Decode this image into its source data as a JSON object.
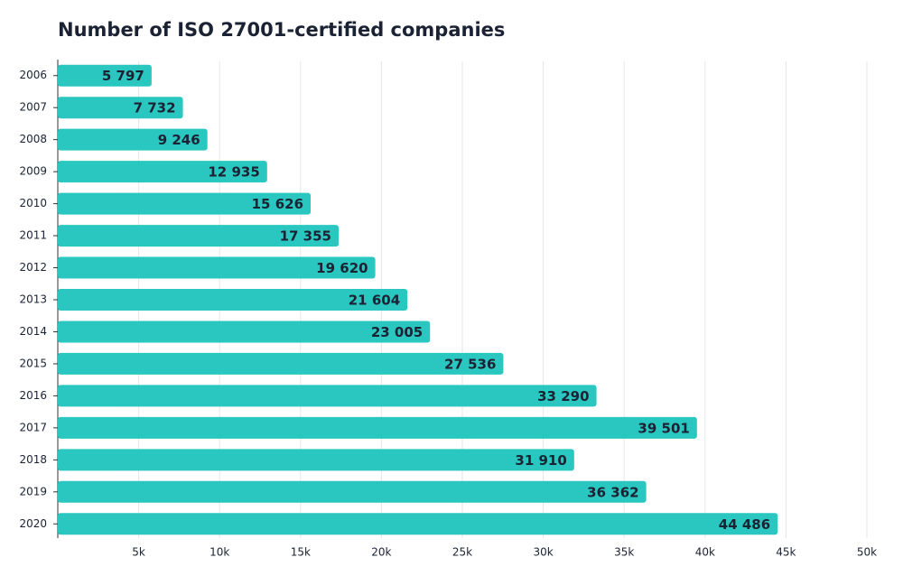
{
  "chart_data": {
    "type": "bar",
    "orientation": "horizontal",
    "title": "Number of ISO 27001-certified companies",
    "categories": [
      "2006",
      "2007",
      "2008",
      "2009",
      "2010",
      "2011",
      "2012",
      "2013",
      "2014",
      "2015",
      "2016",
      "2017",
      "2018",
      "2019",
      "2020"
    ],
    "values": [
      5797,
      7732,
      9246,
      12935,
      15626,
      17355,
      19620,
      21604,
      23005,
      27536,
      33290,
      39501,
      31910,
      36362,
      44486
    ],
    "value_labels": [
      "5 797",
      "7 732",
      "9 246",
      "12 935",
      "15 626",
      "17 355",
      "19 620",
      "21 604",
      "23 005",
      "27 536",
      "33 290",
      "39 501",
      "31 910",
      "36 362",
      "44 486"
    ],
    "color": "#2ac7c0",
    "xlim": [
      0,
      50000
    ],
    "xticks": [
      {
        "value": 5000,
        "label": "5k"
      },
      {
        "value": 10000,
        "label": "10k"
      },
      {
        "value": 15000,
        "label": "15k"
      },
      {
        "value": 20000,
        "label": "20k"
      },
      {
        "value": 25000,
        "label": "25k"
      },
      {
        "value": 30000,
        "label": "30k"
      },
      {
        "value": 35000,
        "label": "35k"
      },
      {
        "value": 40000,
        "label": "40k"
      },
      {
        "value": 45000,
        "label": "45k"
      },
      {
        "value": 50000,
        "label": "50k"
      }
    ],
    "grid": true
  }
}
